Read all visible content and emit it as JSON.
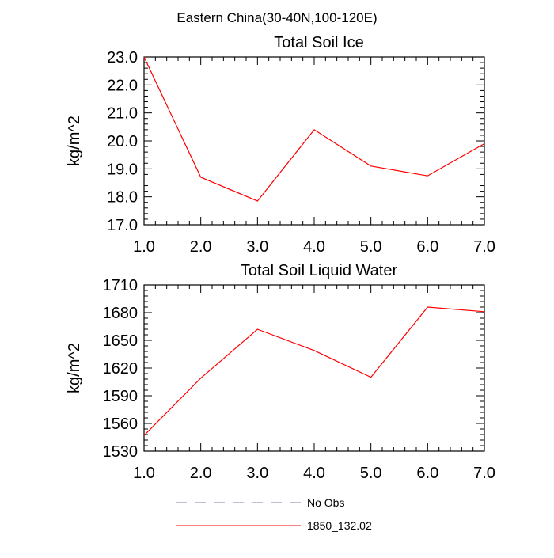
{
  "title": "Eastern China(30-40N,100-120E)",
  "legend": [
    {
      "label": "No Obs",
      "color": "#8080a0",
      "style": "dashed"
    },
    {
      "label": "1850_132.02",
      "color": "#ff0000",
      "style": "solid"
    }
  ],
  "chart_data": [
    {
      "type": "line",
      "title": "Total Soil Ice",
      "xlabel": "",
      "ylabel": "kg/m^2",
      "xlim": [
        1.0,
        7.0
      ],
      "ylim": [
        17.0,
        23.0
      ],
      "x": [
        1,
        2,
        3,
        4,
        5,
        6,
        7
      ],
      "xticks": [
        "1.0",
        "2.0",
        "3.0",
        "4.0",
        "5.0",
        "6.0",
        "7.0"
      ],
      "yticks": [
        "17.0",
        "18.0",
        "19.0",
        "20.0",
        "21.0",
        "22.0",
        "23.0"
      ],
      "ytick_values": [
        17,
        18,
        19,
        20,
        21,
        22,
        23
      ],
      "grid": false,
      "series": [
        {
          "name": "1850_132.02",
          "color": "#ff0000",
          "values": [
            23.0,
            18.7,
            17.85,
            20.4,
            19.1,
            18.75,
            19.9
          ]
        }
      ]
    },
    {
      "type": "line",
      "title": "Total Soil Liquid Water",
      "xlabel": "",
      "ylabel": "kg/m^2",
      "xlim": [
        1.0,
        7.0
      ],
      "ylim": [
        1530,
        1710
      ],
      "x": [
        1,
        2,
        3,
        4,
        5,
        6,
        7
      ],
      "xticks": [
        "1.0",
        "2.0",
        "3.0",
        "4.0",
        "5.0",
        "6.0",
        "7.0"
      ],
      "yticks": [
        "1530",
        "1560",
        "1590",
        "1620",
        "1650",
        "1680",
        "1710"
      ],
      "ytick_values": [
        1530,
        1560,
        1590,
        1620,
        1650,
        1680,
        1710
      ],
      "grid": false,
      "series": [
        {
          "name": "1850_132.02",
          "color": "#ff0000",
          "values": [
            1547,
            1609,
            1662,
            1639,
            1610,
            1686,
            1681
          ]
        }
      ]
    }
  ]
}
